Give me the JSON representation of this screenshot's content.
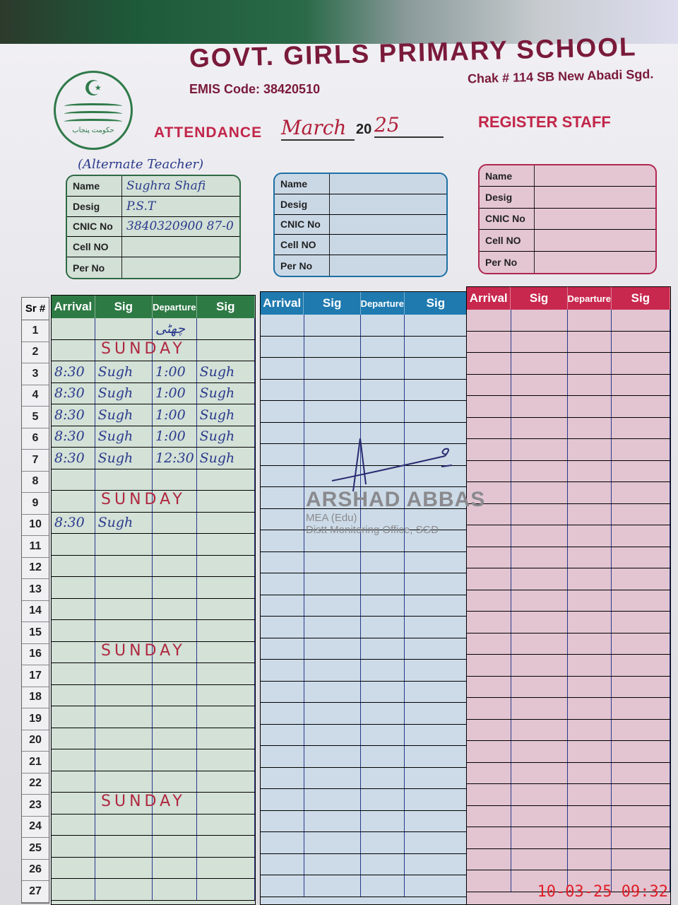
{
  "header": {
    "school": "GOVT. GIRLS PRIMARY SCHOOL",
    "emis": "EMIS Code: 38420510",
    "address": "Chak # 114 SB New Abadi Sgd.",
    "attendance_label": "ATTENDANCE",
    "month": "March",
    "year_prefix": "20",
    "year_suffix": "25",
    "register": "REGISTER STAFF",
    "logo_text": "حکومت پنجاب"
  },
  "staff_cards": [
    {
      "note": "(Alternate Teacher)",
      "labels": [
        "Name",
        "Desig",
        "CNIC No",
        "Cell NO",
        "Per No"
      ],
      "values": [
        "Sughra Shafi",
        "P.S.T",
        "3840320900 87-0",
        "",
        ""
      ]
    },
    {
      "labels": [
        "Name",
        "Desig",
        "CNIC No",
        "Cell NO",
        "Per No"
      ],
      "values": [
        "",
        "",
        "",
        "",
        ""
      ]
    },
    {
      "labels": [
        "Name",
        "Desig",
        "CNIC No",
        "Cell NO",
        "Per No"
      ],
      "values": [
        "",
        "",
        "",
        "",
        ""
      ]
    }
  ],
  "table": {
    "sr_header": "Sr #",
    "columns": [
      "Arrival",
      "Sig",
      "Departure",
      "Sig"
    ],
    "rows": [
      {
        "sr": "1",
        "cells": [
          "",
          "",
          "چھٹی",
          ""
        ]
      },
      {
        "sr": "2",
        "note": "SUNDAY",
        "cells": [
          "",
          "",
          "",
          ""
        ]
      },
      {
        "sr": "3",
        "cells": [
          "8:30",
          "Sugh",
          "1:00",
          "Sugh"
        ]
      },
      {
        "sr": "4",
        "cells": [
          "8:30",
          "Sugh",
          "1:00",
          "Sugh"
        ]
      },
      {
        "sr": "5",
        "cells": [
          "8:30",
          "Sugh",
          "1:00",
          "Sugh"
        ]
      },
      {
        "sr": "6",
        "cells": [
          "8:30",
          "Sugh",
          "1:00",
          "Sugh"
        ]
      },
      {
        "sr": "7",
        "cells": [
          "8:30",
          "Sugh",
          "12:30",
          "Sugh"
        ]
      },
      {
        "sr": "8",
        "cells": [
          "",
          "",
          "",
          ""
        ]
      },
      {
        "sr": "9",
        "note": "SUNDAY",
        "cells": [
          "",
          "",
          "",
          ""
        ]
      },
      {
        "sr": "10",
        "cells": [
          "8:30",
          "Sugh",
          "",
          ""
        ]
      },
      {
        "sr": "11",
        "cells": [
          "",
          "",
          "",
          ""
        ]
      },
      {
        "sr": "12",
        "cells": [
          "",
          "",
          "",
          ""
        ]
      },
      {
        "sr": "13",
        "cells": [
          "",
          "",
          "",
          ""
        ]
      },
      {
        "sr": "14",
        "cells": [
          "",
          "",
          "",
          ""
        ]
      },
      {
        "sr": "15",
        "cells": [
          "",
          "",
          "",
          ""
        ]
      },
      {
        "sr": "16",
        "note": "SUNDAY",
        "cells": [
          "",
          "",
          "",
          ""
        ]
      },
      {
        "sr": "17",
        "cells": [
          "",
          "",
          "",
          ""
        ]
      },
      {
        "sr": "18",
        "cells": [
          "",
          "",
          "",
          ""
        ]
      },
      {
        "sr": "19",
        "cells": [
          "",
          "",
          "",
          ""
        ]
      },
      {
        "sr": "20",
        "cells": [
          "",
          "",
          "",
          ""
        ]
      },
      {
        "sr": "21",
        "cells": [
          "",
          "",
          "",
          ""
        ]
      },
      {
        "sr": "22",
        "cells": [
          "",
          "",
          "",
          ""
        ]
      },
      {
        "sr": "23",
        "note": "SUNDAY",
        "cells": [
          "",
          "",
          "",
          ""
        ]
      },
      {
        "sr": "24",
        "cells": [
          "",
          "",
          "",
          ""
        ]
      },
      {
        "sr": "25",
        "cells": [
          "",
          "",
          "",
          ""
        ]
      },
      {
        "sr": "26",
        "cells": [
          "",
          "",
          "",
          ""
        ]
      },
      {
        "sr": "27",
        "cells": [
          "",
          "",
          "",
          ""
        ]
      }
    ]
  },
  "stamp": {
    "name": "ARSHAD ABBAS",
    "title": "MEA (Edu)",
    "office": "Distt Monitoring Office, SGD"
  },
  "timestamp": "10-03-25 09:32",
  "colors": {
    "green": "#2e7a45",
    "blue": "#1f7ab0",
    "pink": "#c8284e",
    "ink": "#2b3a8c",
    "red_ink": "#b02840"
  }
}
